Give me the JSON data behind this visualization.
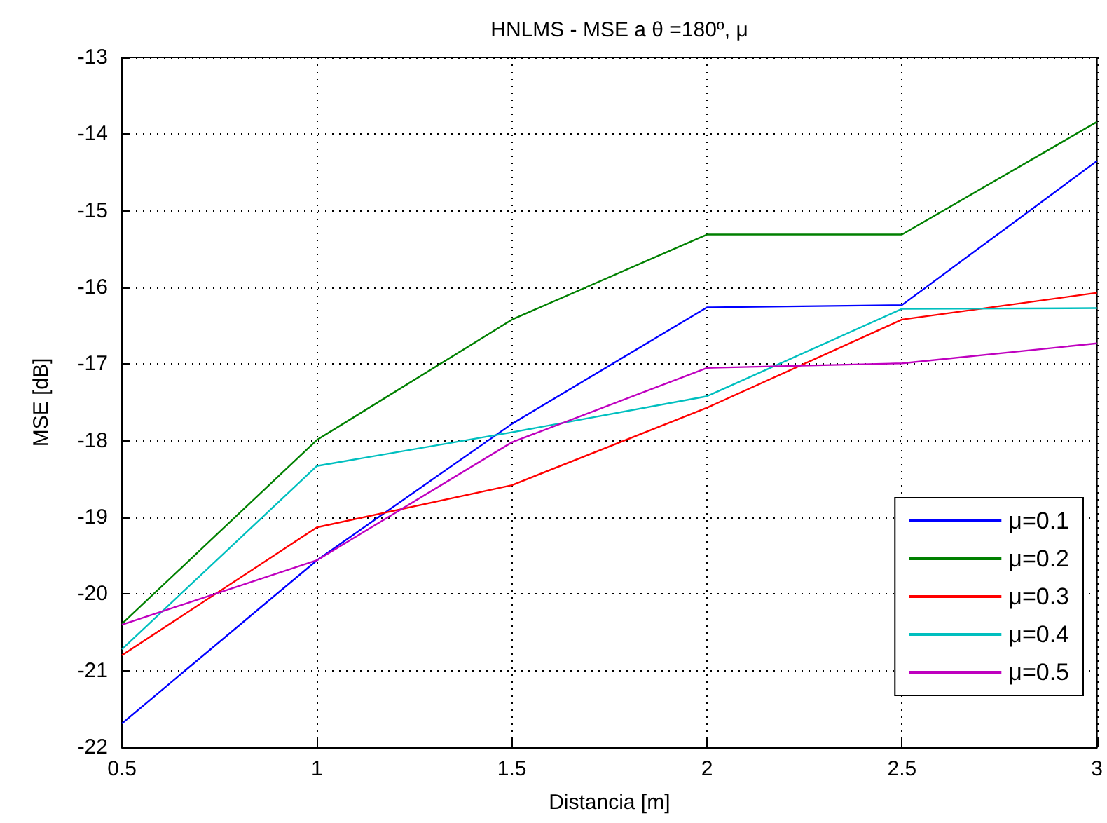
{
  "chart_data": {
    "type": "line",
    "title": "HNLMS - MSE a θ =180º, μ",
    "xlabel": "Distancia [m]",
    "ylabel": "MSE [dB]",
    "x": [
      0.5,
      1,
      1.5,
      2,
      2.5,
      3
    ],
    "series": [
      {
        "name": "μ=0.1",
        "color": "#0000ff",
        "values": [
          -21.69,
          -19.56,
          -17.78,
          -16.26,
          -16.23,
          -14.35
        ]
      },
      {
        "name": "μ=0.2",
        "color": "#008000",
        "values": [
          -20.39,
          -17.99,
          -16.42,
          -15.31,
          -15.31,
          -13.84
        ]
      },
      {
        "name": "μ=0.3",
        "color": "#ff0000",
        "values": [
          -20.8,
          -19.13,
          -18.58,
          -17.57,
          -16.42,
          -16.07
        ]
      },
      {
        "name": "μ=0.4",
        "color": "#00bfbf",
        "values": [
          -20.72,
          -18.33,
          -17.89,
          -17.42,
          -16.28,
          -16.27
        ]
      },
      {
        "name": "μ=0.5",
        "color": "#bf00bf",
        "values": [
          -20.4,
          -19.56,
          -18.02,
          -17.05,
          -16.99,
          -16.73
        ]
      }
    ],
    "xlim": [
      0.5,
      3
    ],
    "xticks": [
      0.5,
      1,
      1.5,
      2,
      2.5,
      3
    ],
    "ylim": [
      -22,
      -13
    ],
    "yticks": [
      -22,
      -21,
      -20,
      -19,
      -18,
      -17,
      -16,
      -15,
      -14,
      -13
    ],
    "grid": true,
    "legend": "bottom right",
    "marker": "none",
    "line_style": "solid"
  }
}
